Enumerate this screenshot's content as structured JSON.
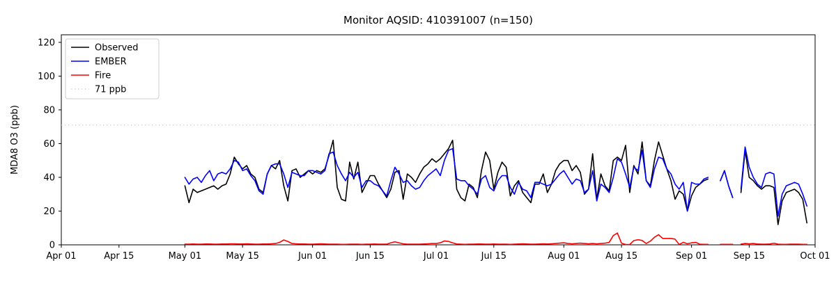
{
  "figure": {
    "title": "Monitor AQSID: 410391007 (n=150)",
    "y_axis_label": "MDA8 O3 (ppb)"
  },
  "legend": {
    "items": [
      {
        "label": "Observed",
        "color": "#000000",
        "style": "solid"
      },
      {
        "label": "EMBER",
        "color": "#0000ff",
        "style": "solid"
      },
      {
        "label": "Fire",
        "color": "#ff0000",
        "style": "solid"
      },
      {
        "label": "71 ppb",
        "color": "#d3d3d3",
        "style": "dotted"
      }
    ]
  },
  "chart_data": {
    "type": "line",
    "title": "Monitor AQSID: 410391007 (n=150)",
    "xlabel": "",
    "ylabel": "MDA8 O3 (ppb)",
    "ylim": [
      0,
      124.5
    ],
    "y_ticks": [
      0,
      20,
      40,
      60,
      80,
      100,
      120
    ],
    "x_axis_span_days": 183,
    "x_ticks": [
      {
        "label": "Apr 01",
        "day": 0
      },
      {
        "label": "Apr 15",
        "day": 14
      },
      {
        "label": "May 01",
        "day": 30
      },
      {
        "label": "May 15",
        "day": 44
      },
      {
        "label": "Jun 01",
        "day": 61
      },
      {
        "label": "Jun 15",
        "day": 75
      },
      {
        "label": "Jul 01",
        "day": 91
      },
      {
        "label": "Jul 15",
        "day": 105
      },
      {
        "label": "Aug 01",
        "day": 122
      },
      {
        "label": "Aug 15",
        "day": 136
      },
      {
        "label": "Sep 01",
        "day": 153
      },
      {
        "label": "Sep 15",
        "day": 167
      },
      {
        "label": "Oct 01",
        "day": 183
      }
    ],
    "threshold": {
      "value": 71,
      "label": "71 ppb",
      "color": "#d3d3d3",
      "style": "dotted"
    },
    "data_start": {
      "date": "May 01",
      "day_offset": 30
    },
    "sample_interval": "daily",
    "grid": false,
    "legend_position": "upper left",
    "series": [
      {
        "name": "Observed",
        "color": "#000000",
        "values": [
          35,
          25,
          33,
          31,
          32,
          33,
          34,
          35,
          33,
          35,
          36,
          42,
          52,
          48,
          45,
          47,
          42,
          40,
          33,
          31,
          42,
          47,
          45,
          50,
          35,
          26,
          44,
          45,
          40,
          42,
          44,
          42,
          44,
          43,
          45,
          53,
          62,
          34,
          27,
          26,
          49,
          39,
          49,
          31,
          36,
          41,
          41,
          36,
          32,
          28,
          33,
          43,
          44,
          27,
          42,
          40,
          37,
          42,
          46,
          48,
          51,
          49,
          51,
          54,
          57,
          62,
          33,
          28,
          26,
          36,
          34,
          28,
          44,
          55,
          50,
          33,
          43,
          49,
          46,
          29,
          35,
          38,
          31,
          28,
          25,
          36,
          36,
          42,
          31,
          36,
          44,
          48,
          50,
          50,
          44,
          47,
          43,
          30,
          33,
          54,
          27,
          42,
          35,
          32,
          50,
          52,
          50,
          59,
          31,
          47,
          42,
          61,
          38,
          35,
          50,
          61,
          53,
          45,
          38,
          27,
          32,
          30,
          20,
          29,
          34,
          36,
          38,
          39,
          null,
          null,
          38,
          44,
          35,
          28,
          null,
          31,
          56,
          40,
          38,
          35,
          33,
          35,
          35,
          34,
          12,
          26,
          31,
          32,
          33,
          31,
          27,
          13
        ]
      },
      {
        "name": "EMBER",
        "color": "#0000ff",
        "values": [
          40,
          36,
          39,
          40,
          37,
          41,
          44,
          38,
          42,
          43,
          42,
          45,
          50,
          49,
          44,
          45,
          41,
          38,
          32,
          30,
          42,
          47,
          48,
          48,
          42,
          34,
          43,
          42,
          41,
          41,
          44,
          44,
          43,
          42,
          44,
          54,
          55,
          47,
          42,
          38,
          43,
          40,
          43,
          34,
          38,
          38,
          36,
          35,
          32,
          29,
          38,
          46,
          42,
          37,
          38,
          35,
          33,
          34,
          38,
          41,
          43,
          45,
          41,
          50,
          56,
          57,
          39,
          38,
          38,
          35,
          33,
          30,
          39,
          41,
          34,
          32,
          38,
          41,
          41,
          34,
          30,
          37,
          33,
          32,
          28,
          37,
          37,
          36,
          35,
          36,
          39,
          42,
          44,
          40,
          36,
          39,
          38,
          31,
          33,
          44,
          26,
          36,
          34,
          31,
          40,
          51,
          49,
          42,
          34,
          46,
          44,
          56,
          38,
          34,
          45,
          52,
          51,
          45,
          42,
          36,
          33,
          37,
          20,
          37,
          36,
          36,
          39,
          40,
          null,
          null,
          38,
          44,
          35,
          28,
          null,
          33,
          58,
          46,
          40,
          36,
          34,
          42,
          43,
          42,
          17,
          30,
          35,
          36,
          37,
          36,
          30,
          23
        ]
      },
      {
        "name": "Fire",
        "color": "#ff0000",
        "values": [
          0.4,
          0.4,
          0.5,
          0.4,
          0.4,
          0.5,
          0.5,
          0.4,
          0.4,
          0.5,
          0.5,
          0.6,
          0.6,
          0.5,
          0.5,
          0.6,
          0.5,
          0.4,
          0.4,
          0.5,
          0.5,
          0.6,
          0.8,
          1.5,
          2.9,
          2.0,
          0.8,
          0.6,
          0.5,
          0.5,
          0.4,
          0.4,
          0.5,
          0.6,
          0.5,
          0.4,
          0.4,
          0.4,
          0.3,
          0.3,
          0.4,
          0.4,
          0.4,
          0.3,
          0.4,
          0.4,
          0.5,
          0.4,
          0.4,
          0.4,
          1.2,
          1.8,
          1.2,
          0.6,
          0.4,
          0.4,
          0.4,
          0.4,
          0.5,
          0.6,
          0.8,
          0.8,
          1.2,
          2.3,
          2.0,
          1.2,
          0.5,
          0.4,
          0.3,
          0.4,
          0.4,
          0.5,
          0.5,
          0.4,
          0.4,
          0.5,
          0.4,
          0.4,
          0.4,
          0.3,
          0.4,
          0.5,
          0.6,
          0.5,
          0.4,
          0.4,
          0.5,
          0.6,
          0.5,
          0.6,
          0.8,
          1.0,
          1.2,
          0.8,
          0.6,
          0.8,
          1.0,
          0.8,
          0.6,
          0.8,
          0.6,
          0.8,
          1.0,
          1.5,
          5.5,
          7.0,
          1.0,
          0.2,
          0.2,
          2.5,
          3.0,
          2.6,
          0.8,
          2.2,
          4.5,
          6.0,
          3.8,
          3.8,
          3.8,
          3.4,
          0.2,
          1.5,
          0.6,
          1.2,
          1.5,
          0.4,
          0.3,
          0.3,
          null,
          null,
          0.3,
          0.3,
          0.3,
          0.3,
          null,
          0.4,
          0.8,
          0.6,
          0.8,
          0.5,
          0.4,
          0.4,
          0.5,
          1.0,
          0.4,
          0.3,
          0.3,
          0.4,
          0.4,
          0.4,
          0.3,
          0.3
        ]
      }
    ]
  }
}
